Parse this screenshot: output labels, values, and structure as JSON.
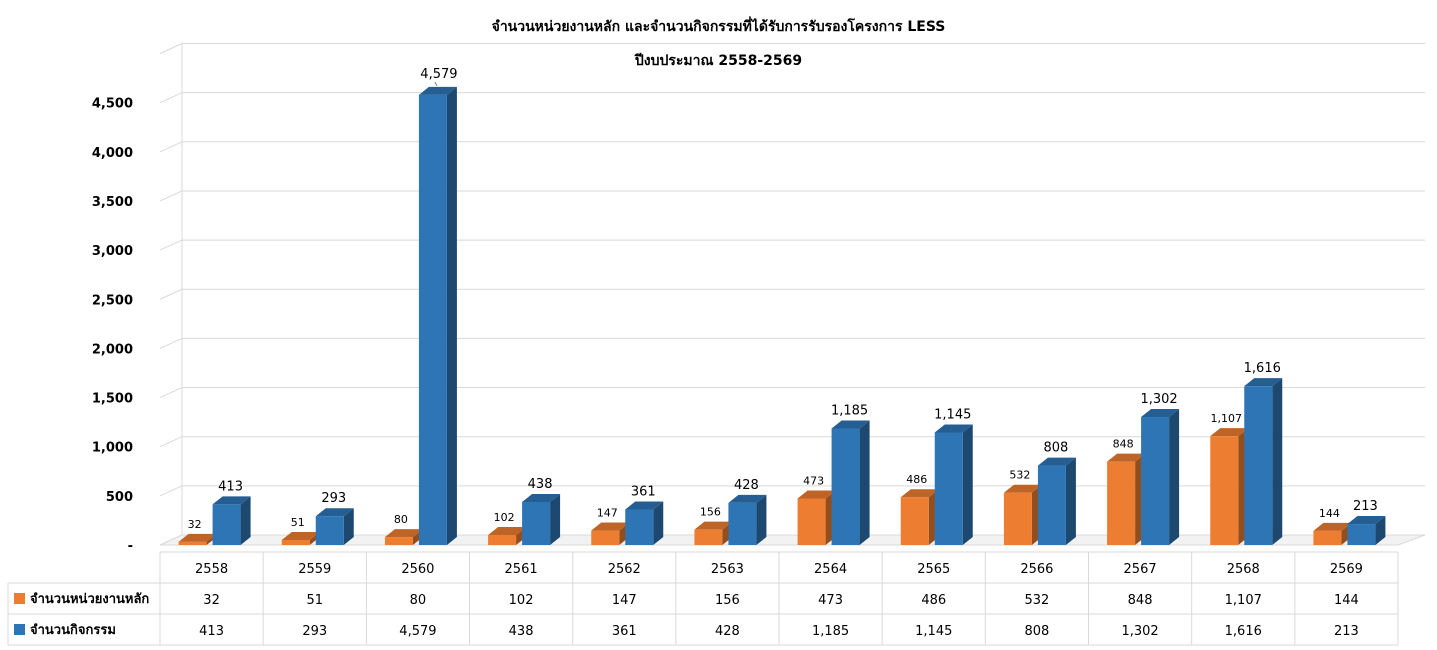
{
  "chart_data": {
    "type": "bar",
    "title": "จำนวนหน่วยงานหลัก และจำนวนกิจกรรมที่ได้รับการรับรองโครงการ LESS",
    "subtitle": "ปีงบประมาณ 2558-2569",
    "categories": [
      "2558",
      "2559",
      "2560",
      "2561",
      "2562",
      "2563",
      "2564",
      "2565",
      "2566",
      "2567",
      "2568",
      "2569"
    ],
    "series": [
      {
        "name": "จำนวนหน่วยงานหลัก",
        "color": "#ED7D31",
        "values": [
          32,
          51,
          80,
          102,
          147,
          156,
          473,
          486,
          532,
          848,
          1107,
          144
        ],
        "labels": [
          "32",
          "51",
          "80",
          "102",
          "147",
          "156",
          "473",
          "486",
          "532",
          "848",
          "1,107",
          "144"
        ]
      },
      {
        "name": "จำนวนกิจกรรม",
        "color": "#2E75B6",
        "values": [
          413,
          293,
          4579,
          438,
          361,
          428,
          1185,
          1145,
          808,
          1302,
          1616,
          213
        ],
        "labels": [
          "413",
          "293",
          "4,579",
          "438",
          "361",
          "428",
          "1,185",
          "1,145",
          "808",
          "1,302",
          "1,616",
          "213"
        ]
      }
    ],
    "ylim": [
      0,
      5000
    ],
    "yticks": [
      "-",
      "500",
      "1,000",
      "1,500",
      "2,000",
      "2,500",
      "3,000",
      "3,500",
      "4,000",
      "4,500"
    ],
    "grid": true,
    "legend": "data-table",
    "style": "3d-column"
  }
}
